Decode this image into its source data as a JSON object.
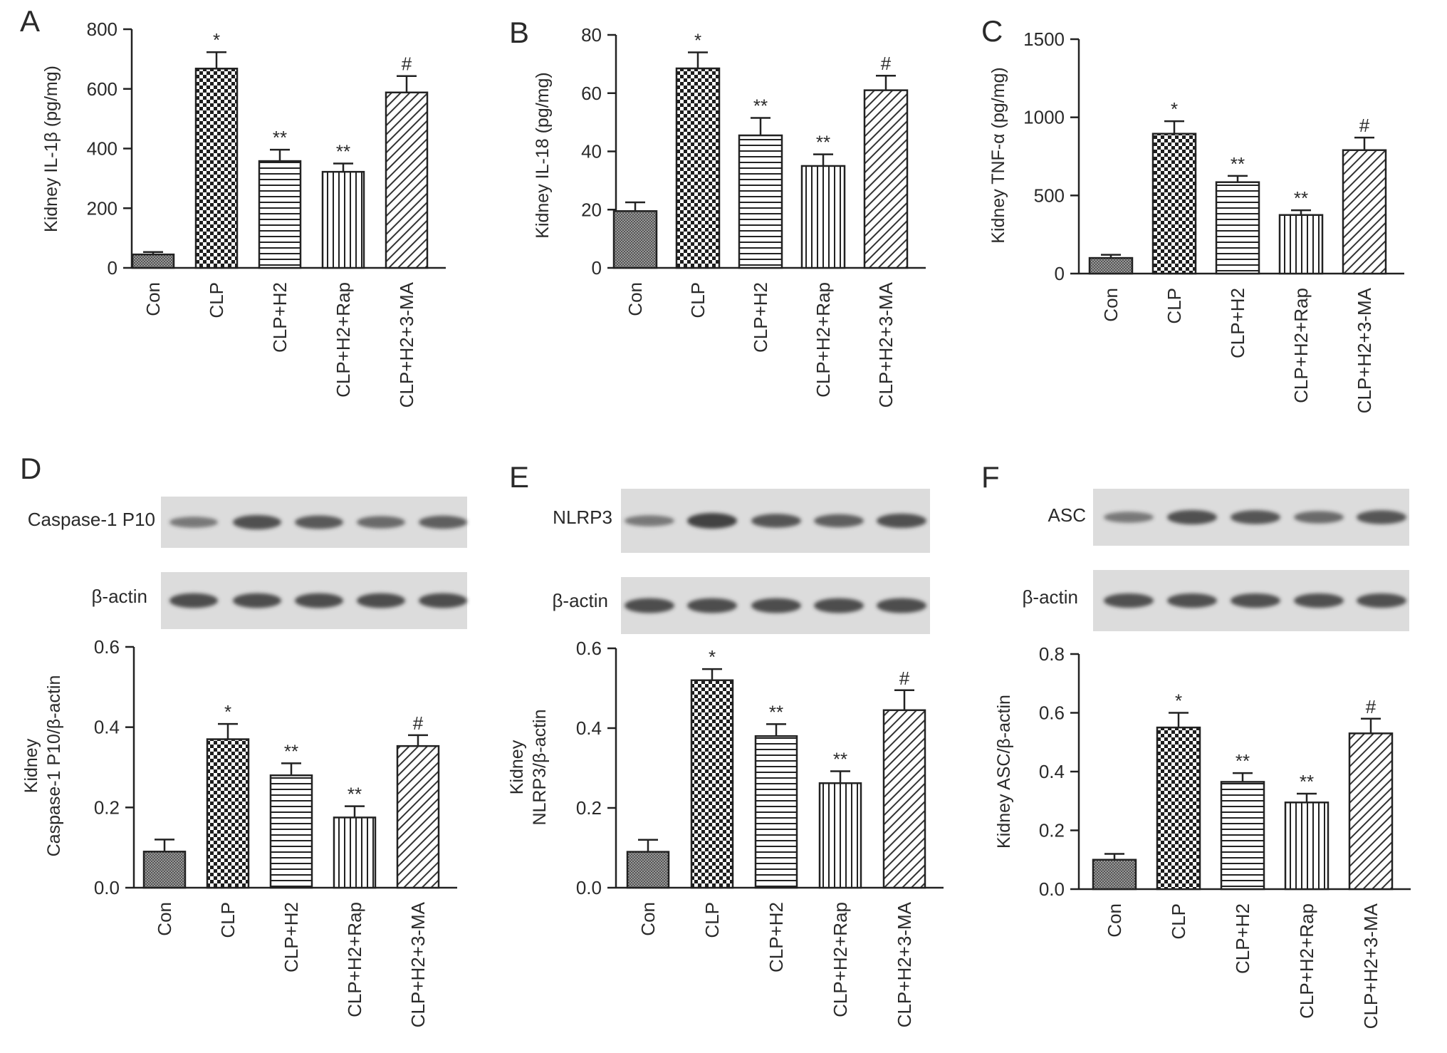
{
  "colors": {
    "bar_stroke": "#222222",
    "error_bar": "#222222",
    "blot_bg": "#dcdcdc",
    "band": "#3a3a3a"
  },
  "blots": [
    {
      "panel": "D",
      "rows": [
        {
          "label": "Caspase-1 P10",
          "intensity": [
            0.45,
            0.85,
            0.75,
            0.6,
            0.7
          ]
        },
        {
          "label": "β-actin",
          "intensity": [
            0.9,
            0.9,
            0.9,
            0.9,
            0.9
          ]
        }
      ]
    },
    {
      "panel": "E",
      "rows": [
        {
          "label": "NLRP3",
          "intensity": [
            0.45,
            1.0,
            0.8,
            0.7,
            0.85
          ]
        },
        {
          "label": "β-actin",
          "intensity": [
            0.9,
            0.9,
            0.9,
            0.9,
            0.9
          ]
        }
      ]
    },
    {
      "panel": "F",
      "rows": [
        {
          "label": "ASC",
          "intensity": [
            0.45,
            0.85,
            0.8,
            0.6,
            0.8
          ]
        },
        {
          "label": "β-actin",
          "intensity": [
            0.85,
            0.85,
            0.85,
            0.85,
            0.85
          ]
        }
      ]
    }
  ],
  "chart_data": [
    {
      "panel": "A",
      "type": "bar",
      "categories": [
        "Con",
        "CLP",
        "CLP+H2",
        "CLP+H2+Rap",
        "CLP+H2+3-MA"
      ],
      "values": [
        45,
        668,
        358,
        322,
        588
      ],
      "errors": [
        8,
        55,
        38,
        28,
        55
      ],
      "significance": [
        "",
        "*",
        "**",
        "**",
        "#"
      ],
      "patterns": [
        "dense",
        "checker",
        "hlines",
        "vlines",
        "diag"
      ],
      "ylabel": "Kidney IL-1β (pg/mg)",
      "ylim": [
        0,
        800
      ],
      "yticks": [
        "0",
        "200",
        "400",
        "600",
        "800"
      ]
    },
    {
      "panel": "B",
      "type": "bar",
      "categories": [
        "Con",
        "CLP",
        "CLP+H2",
        "CLP+H2+Rap",
        "CLP+H2+3-MA"
      ],
      "values": [
        19.5,
        68.5,
        45.5,
        35,
        61
      ],
      "errors": [
        3,
        5.5,
        6,
        4,
        5
      ],
      "significance": [
        "",
        "*",
        "**",
        "**",
        "#"
      ],
      "patterns": [
        "dense",
        "checker",
        "hlines",
        "vlines",
        "diag"
      ],
      "ylabel": "Kidney IL-18 (pg/mg)",
      "ylim": [
        0,
        80
      ],
      "yticks": [
        "0",
        "20",
        "40",
        "60",
        "80"
      ]
    },
    {
      "panel": "C",
      "type": "bar",
      "categories": [
        "Con",
        "CLP",
        "CLP+H2",
        "CLP+H2+Rap",
        "CLP+H2+3-MA"
      ],
      "values": [
        100,
        895,
        585,
        375,
        790
      ],
      "errors": [
        20,
        80,
        40,
        30,
        80
      ],
      "significance": [
        "",
        "*",
        "**",
        "**",
        "#"
      ],
      "patterns": [
        "dense",
        "checker",
        "hlines",
        "vlines",
        "diag"
      ],
      "ylabel": "Kidney TNF-α (pg/mg)",
      "ylim": [
        0,
        1500
      ],
      "yticks": [
        "0",
        "500",
        "1000",
        "1500"
      ]
    },
    {
      "panel": "D",
      "type": "bar",
      "categories": [
        "Con",
        "CLP",
        "CLP+H2",
        "CLP+H2+Rap",
        "CLP+H2+3-MA"
      ],
      "values": [
        0.09,
        0.37,
        0.28,
        0.175,
        0.353
      ],
      "errors": [
        0.03,
        0.038,
        0.03,
        0.028,
        0.027
      ],
      "significance": [
        "",
        "*",
        "**",
        "**",
        "#"
      ],
      "patterns": [
        "dense",
        "checker",
        "hlines",
        "vlines",
        "diag"
      ],
      "ylabel": [
        "Kidney",
        "Caspase-1 P10/β-actin"
      ],
      "ylim": [
        0,
        0.6
      ],
      "yticks": [
        "0.0",
        "0.2",
        "0.4",
        "0.6"
      ]
    },
    {
      "panel": "E",
      "type": "bar",
      "categories": [
        "Con",
        "CLP",
        "CLP+H2",
        "CLP+H2+Rap",
        "CLP+H2+3-MA"
      ],
      "values": [
        0.09,
        0.52,
        0.38,
        0.262,
        0.445
      ],
      "errors": [
        0.03,
        0.028,
        0.03,
        0.03,
        0.05
      ],
      "significance": [
        "",
        "*",
        "**",
        "**",
        "#"
      ],
      "patterns": [
        "dense",
        "checker",
        "hlines",
        "vlines",
        "diag"
      ],
      "ylabel": [
        "Kidney",
        "NLRP3/β-actin"
      ],
      "ylim": [
        0,
        0.6
      ],
      "yticks": [
        "0.0",
        "0.2",
        "0.4",
        "0.6"
      ]
    },
    {
      "panel": "F",
      "type": "bar",
      "categories": [
        "Con",
        "CLP",
        "CLP+H2",
        "CLP+H2+Rap",
        "CLP+H2+3-MA"
      ],
      "values": [
        0.1,
        0.55,
        0.365,
        0.295,
        0.53
      ],
      "errors": [
        0.02,
        0.05,
        0.03,
        0.03,
        0.05
      ],
      "significance": [
        "",
        "*",
        "**",
        "**",
        "#"
      ],
      "patterns": [
        "dense",
        "checker",
        "hlines",
        "vlines",
        "diag"
      ],
      "ylabel": "Kidney ASC/β-actin",
      "ylim": [
        0,
        0.8
      ],
      "yticks": [
        "0.0",
        "0.2",
        "0.4",
        "0.6",
        "0.8"
      ]
    }
  ]
}
